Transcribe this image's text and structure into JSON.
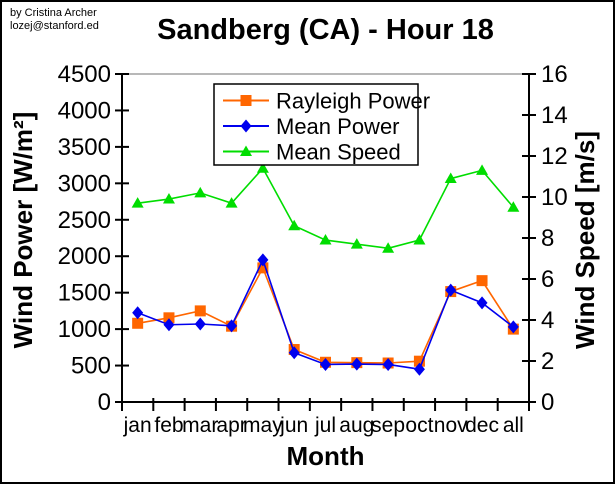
{
  "credit": {
    "line1": "by Cristina Archer",
    "line2": "lozej@stanford.ed"
  },
  "chart_data": {
    "type": "line",
    "title": "Sandberg (CA) - Hour 18",
    "xlabel": "Month",
    "categories": [
      "jan",
      "feb",
      "mar",
      "apr",
      "may",
      "jun",
      "jul",
      "aug",
      "sep",
      "oct",
      "nov",
      "dec",
      "all"
    ],
    "left_axis": {
      "label": "Wind Power [W/m²]",
      "min": 0,
      "max": 4500,
      "step": 500,
      "ticks": [
        0,
        500,
        1000,
        1500,
        2000,
        2500,
        3000,
        3500,
        4000,
        4500
      ]
    },
    "right_axis": {
      "label": "Wind Speed [m/s]",
      "min": 0,
      "max": 16,
      "step": 2,
      "ticks": [
        0,
        2,
        4,
        6,
        8,
        10,
        12,
        14,
        16
      ]
    },
    "grid": false,
    "legend_position": "top-center-inside",
    "series": [
      {
        "name": "Rayleigh Power",
        "axis": "left",
        "marker": "square",
        "color": "#ff6600",
        "values": [
          1080,
          1155,
          1250,
          1040,
          1840,
          720,
          545,
          540,
          535,
          560,
          1515,
          1665,
          1000
        ]
      },
      {
        "name": "Mean Power",
        "axis": "left",
        "marker": "diamond",
        "color": "#0000ee",
        "values": [
          1225,
          1060,
          1070,
          1045,
          1950,
          675,
          515,
          520,
          515,
          450,
          1535,
          1360,
          1030
        ]
      },
      {
        "name": "Mean Speed",
        "axis": "right",
        "marker": "triangle",
        "color": "#00dd00",
        "values": [
          9.7,
          9.9,
          10.2,
          9.7,
          11.4,
          8.6,
          7.9,
          7.7,
          7.5,
          7.9,
          10.9,
          11.3,
          9.5
        ]
      }
    ],
    "colors": {
      "frame": "#000000",
      "top_border": "#a0a0a0",
      "background": "#ffffff"
    }
  }
}
